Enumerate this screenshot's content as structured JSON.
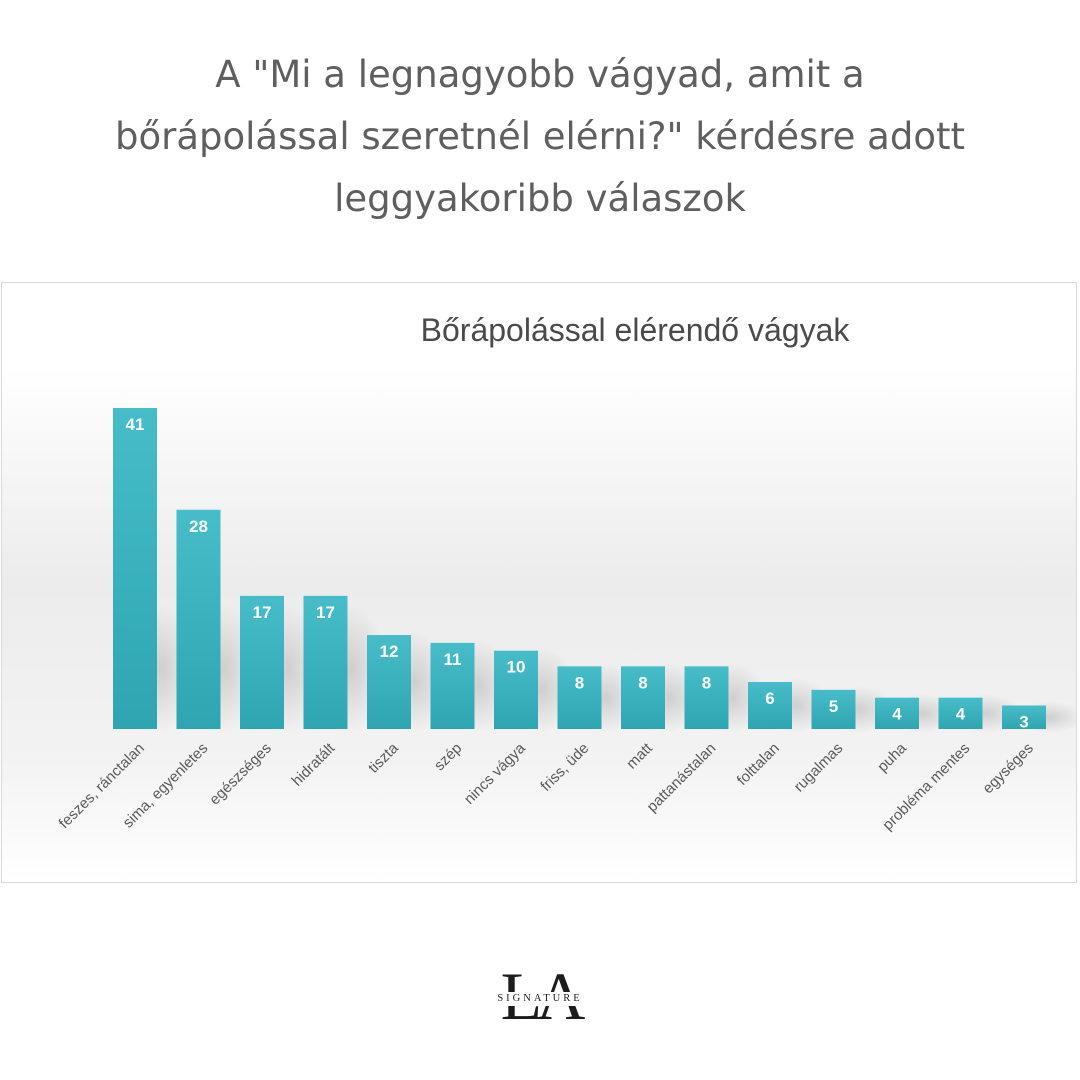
{
  "page": {
    "headline_lines": [
      "A \"Mi a legnagyobb vágyad, amit a",
      "bőrápolással szeretnél elérni?\" kérdésre adott",
      "leggyakoribb válaszok"
    ]
  },
  "logo": {
    "letters": "LA",
    "word": "SIGNATURE"
  },
  "colors": {
    "bar_top": "#46bdc8",
    "bar_bottom": "#2ea5b1",
    "label_text": "#ffffff",
    "headline_text": "#5f5f5f",
    "tick_text": "#595959"
  },
  "chart_data": {
    "type": "bar",
    "title": "Bőrápolással elérendő vágyak",
    "xlabel": "",
    "ylabel": "",
    "ylim": [
      0,
      45
    ],
    "grid": false,
    "legend": "none",
    "categories": [
      "feszes, ránctalan",
      "sima, egyenletes",
      "egészséges",
      "hidratált",
      "tiszta",
      "szép",
      "nincs vágya",
      "friss, üde",
      "matt",
      "pattanástalan",
      "folttalan",
      "rugalmas",
      "puha",
      "probléma mentes",
      "egységes"
    ],
    "values": [
      41,
      28,
      17,
      17,
      12,
      11,
      10,
      8,
      8,
      8,
      6,
      5,
      4,
      4,
      3
    ],
    "data_labels": [
      "41",
      "28",
      "17",
      "17",
      "12",
      "11",
      "10",
      "8",
      "8",
      "8",
      "6",
      "5",
      "4",
      "4",
      "3"
    ]
  }
}
